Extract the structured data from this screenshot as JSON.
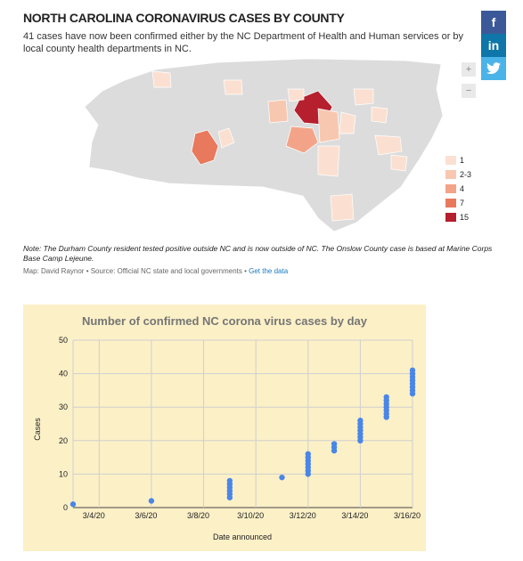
{
  "header": {
    "title": "NORTH CAROLINA CORONAVIRUS CASES BY COUNTY",
    "subtitle": "41 cases have now been confirmed either by the NC Department of Health and Human services or by local county health departments in NC."
  },
  "social": {
    "facebook": "f",
    "linkedin": "in",
    "twitter": "t"
  },
  "zoom": {
    "in": "+",
    "out": "−"
  },
  "colors": {
    "c1": "#fbe0d2",
    "c23": "#f8c7b0",
    "c4": "#f3a488",
    "c7": "#e8795c",
    "c15": "#b51f2e",
    "base": "#dcdcdc",
    "point": "#4a86e8"
  },
  "legend": [
    {
      "label": "1",
      "color": "#fbe0d2"
    },
    {
      "label": "2-3",
      "color": "#f8c7b0"
    },
    {
      "label": "4",
      "color": "#f3a488"
    },
    {
      "label": "7",
      "color": "#e8795c"
    },
    {
      "label": "15",
      "color": "#b51f2e"
    }
  ],
  "note": "Note: The Durham County resident tested positive outside NC and is now outside of NC. The Onslow County case is based at Marine Corps Base Camp Lejeune.",
  "credit": {
    "text": "Map: David Raynor • Source: Official NC state and local governments • ",
    "link": "Get the data"
  },
  "chart_data": {
    "type": "scatter",
    "title": "Number of confirmed NC corona virus cases by day",
    "xlabel": "Date announced",
    "ylabel": "Cases",
    "ylim": [
      0,
      50
    ],
    "yticks": [
      0,
      10,
      20,
      30,
      40,
      50
    ],
    "xticks": [
      "3/4/20",
      "3/6/20",
      "3/8/20",
      "3/10/20",
      "3/12/20",
      "3/14/20",
      "3/16/20"
    ],
    "xdomain": [
      "3/3/20",
      "3/16/20"
    ],
    "grid": true,
    "points": [
      {
        "x": "3/3/20",
        "y": 1
      },
      {
        "x": "3/6/20",
        "y": 2
      },
      {
        "x": "3/9/20",
        "y": 3
      },
      {
        "x": "3/9/20",
        "y": 4
      },
      {
        "x": "3/9/20",
        "y": 5
      },
      {
        "x": "3/9/20",
        "y": 6
      },
      {
        "x": "3/9/20",
        "y": 7
      },
      {
        "x": "3/9/20",
        "y": 8
      },
      {
        "x": "3/11/20",
        "y": 9
      },
      {
        "x": "3/12/20",
        "y": 10
      },
      {
        "x": "3/12/20",
        "y": 11
      },
      {
        "x": "3/12/20",
        "y": 12
      },
      {
        "x": "3/12/20",
        "y": 13
      },
      {
        "x": "3/12/20",
        "y": 14
      },
      {
        "x": "3/12/20",
        "y": 15
      },
      {
        "x": "3/12/20",
        "y": 16
      },
      {
        "x": "3/13/20",
        "y": 17
      },
      {
        "x": "3/13/20",
        "y": 18
      },
      {
        "x": "3/13/20",
        "y": 19
      },
      {
        "x": "3/14/20",
        "y": 20
      },
      {
        "x": "3/14/20",
        "y": 21
      },
      {
        "x": "3/14/20",
        "y": 22
      },
      {
        "x": "3/14/20",
        "y": 23
      },
      {
        "x": "3/14/20",
        "y": 24
      },
      {
        "x": "3/14/20",
        "y": 25
      },
      {
        "x": "3/14/20",
        "y": 26
      },
      {
        "x": "3/15/20",
        "y": 27
      },
      {
        "x": "3/15/20",
        "y": 28
      },
      {
        "x": "3/15/20",
        "y": 29
      },
      {
        "x": "3/15/20",
        "y": 30
      },
      {
        "x": "3/15/20",
        "y": 31
      },
      {
        "x": "3/15/20",
        "y": 32
      },
      {
        "x": "3/15/20",
        "y": 33
      },
      {
        "x": "3/16/20",
        "y": 34
      },
      {
        "x": "3/16/20",
        "y": 35
      },
      {
        "x": "3/16/20",
        "y": 36
      },
      {
        "x": "3/16/20",
        "y": 37
      },
      {
        "x": "3/16/20",
        "y": 38
      },
      {
        "x": "3/16/20",
        "y": 39
      },
      {
        "x": "3/16/20",
        "y": 40
      },
      {
        "x": "3/16/20",
        "y": 41
      }
    ]
  }
}
